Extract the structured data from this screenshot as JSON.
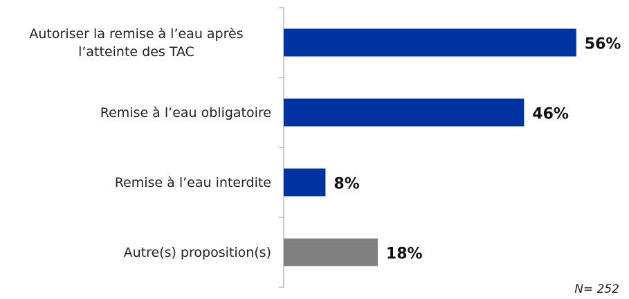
{
  "chart_data": {
    "type": "bar",
    "orientation": "horizontal",
    "categories": [
      "Autoriser la remise à l’eau après l’atteinte des TAC",
      "Remise à l’eau obligatoire",
      "Remise à l’eau interdite",
      "Autre(s) proposition(s)"
    ],
    "values": [
      56,
      46,
      8,
      18
    ],
    "value_labels": [
      "56%",
      "46%",
      "8%",
      "18%"
    ],
    "colors": [
      "#0033a1",
      "#0033a1",
      "#0033a1",
      "#808080"
    ],
    "annotation": "N= 252"
  }
}
